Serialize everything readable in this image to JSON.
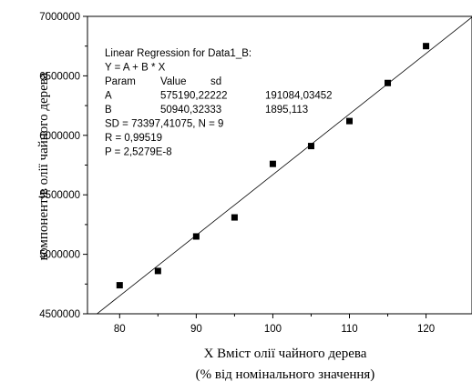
{
  "chart_data": {
    "type": "scatter",
    "x_ticks": [
      80,
      85,
      90,
      95,
      100,
      105,
      110,
      115,
      120
    ],
    "x_tick_labels": [
      "80",
      "90",
      "100",
      "110",
      "120"
    ],
    "xlim": [
      75.8,
      126
    ],
    "y_ticks": [
      4500000,
      5000000,
      5500000,
      6000000,
      6500000,
      7000000
    ],
    "y_tick_labels": [
      "4500000",
      "5000000",
      "5500000",
      "6000000",
      "6500000",
      "7000000"
    ],
    "ylim": [
      4500000,
      7000000
    ],
    "xlabel_line1": "X Вміст олії чайного дерева",
    "xlabel_line2": "(% від номінального значення)",
    "ylabel_visible": "компонентів олії чайного дерева",
    "points": [
      {
        "x": 80,
        "y": 4740000
      },
      {
        "x": 85,
        "y": 4860000
      },
      {
        "x": 90,
        "y": 5150000
      },
      {
        "x": 95,
        "y": 5310000
      },
      {
        "x": 100,
        "y": 5760000
      },
      {
        "x": 105,
        "y": 5910000
      },
      {
        "x": 110,
        "y": 6120000
      },
      {
        "x": 115,
        "y": 6440000
      },
      {
        "x": 120,
        "y": 6750000
      }
    ],
    "fit": {
      "intercept": 575190.22222,
      "slope": 50940.32333
    },
    "grid": false,
    "annotation": [
      "Linear Regression for Data1_B:",
      "Y = A + B * X",
      [
        "Param",
        "Value",
        "sd"
      ],
      [
        "A",
        "575190,22222",
        "191084,03452"
      ],
      [
        "B",
        "50940,32333",
        "1895,113"
      ],
      "SD = 73397,41075, N = 9",
      "R  = 0,99519",
      "P = 2,5279E-8"
    ]
  }
}
